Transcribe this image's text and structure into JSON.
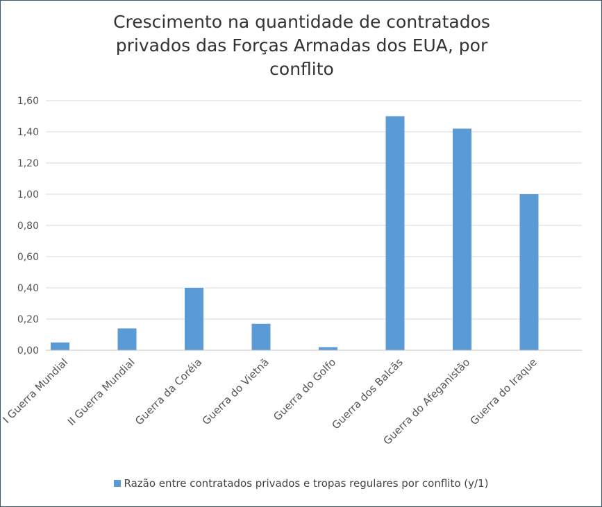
{
  "chart_data": {
    "type": "bar",
    "title_lines": [
      "Crescimento na quantidade de  contratados",
      "privados das Forças Armadas dos EUA, por",
      "conflito"
    ],
    "categories": [
      "I Guerra Mundial",
      "II Guerra Mundial",
      "Guerra da Coréia",
      "Guerra do Vietnã",
      "Guerra do Golfo",
      "Guerra dos Balcãs",
      "Guerra do Afeganistão",
      "Guerra do Iraque"
    ],
    "series": [
      {
        "name": "Razão entre  contratados privados e tropas regulares por conflito (y/1)",
        "values": [
          0.05,
          0.14,
          0.4,
          0.17,
          0.02,
          1.5,
          1.42,
          1.0
        ],
        "color": "#5b9bd5"
      }
    ],
    "yticks": [
      "0,00",
      "0,20",
      "0,40",
      "0,60",
      "0,80",
      "1,00",
      "1,20",
      "1,40",
      "1,60"
    ],
    "ylim": [
      0,
      1.6
    ],
    "grid": true,
    "gridline_color": "#d9d9d9",
    "legend_position": "bottom"
  }
}
